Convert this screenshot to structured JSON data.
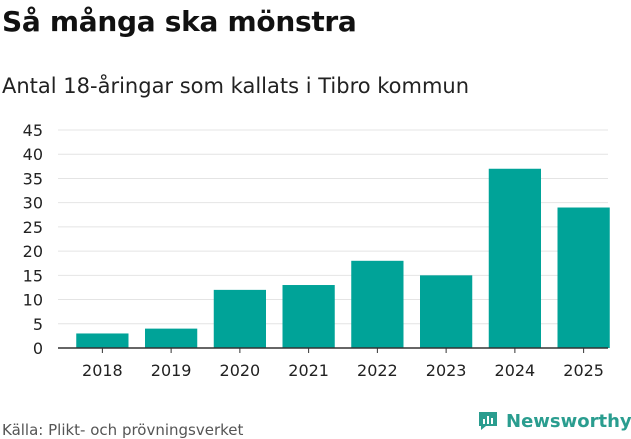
{
  "title": "Så många ska mönstra",
  "subtitle": "Antal 18-åringar som kallats i Tibro kommun",
  "source": "Källa: Plikt- och prövningsverket",
  "brand": {
    "name": "Newsworthy",
    "icon": "newsworthy-logo-icon"
  },
  "colors": {
    "bar": "#00a398",
    "grid": "#e4e4e4",
    "axis": "#333333",
    "brand": "#2a9d8f"
  },
  "chart_data": {
    "type": "bar",
    "categories": [
      "2018",
      "2019",
      "2020",
      "2021",
      "2022",
      "2023",
      "2024",
      "2025"
    ],
    "values": [
      3,
      4,
      12,
      13,
      18,
      15,
      37,
      29
    ],
    "yticks": [
      0,
      5,
      10,
      15,
      20,
      25,
      30,
      35,
      40,
      45
    ],
    "ylim": [
      0,
      45
    ],
    "grid": true,
    "title": "Så många ska mönstra",
    "subtitle": "Antal 18-åringar som kallats i Tibro kommun"
  }
}
